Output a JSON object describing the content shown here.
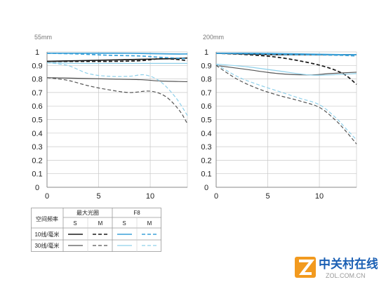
{
  "chart_data": [
    {
      "type": "line",
      "panel_label": "55mm",
      "xlim": [
        0,
        13.6
      ],
      "ylim": [
        0,
        1.0
      ],
      "x_ticks": [
        "0",
        "5",
        "10"
      ],
      "y_ticks": [
        "0",
        "0.1",
        "0.2",
        "0.3",
        "0.4",
        "0.5",
        "0.6",
        "0.7",
        "0.8",
        "0.9",
        "1"
      ],
      "grid": true,
      "series": [
        {
          "group": "max_aperture",
          "freq": "10",
          "dir": "S",
          "points": [
            [
              0,
              0.93
            ],
            [
              3,
              0.935
            ],
            [
              6,
              0.94
            ],
            [
              9,
              0.945
            ],
            [
              12,
              0.95
            ],
            [
              13.6,
              0.955
            ]
          ]
        },
        {
          "group": "max_aperture",
          "freq": "10",
          "dir": "M",
          "points": [
            [
              0,
              0.93
            ],
            [
              3,
              0.93
            ],
            [
              6,
              0.93
            ],
            [
              9,
              0.935
            ],
            [
              11,
              0.95
            ],
            [
              12.5,
              0.945
            ],
            [
              13.6,
              0.935
            ]
          ]
        },
        {
          "group": "max_aperture",
          "freq": "30",
          "dir": "S",
          "points": [
            [
              0,
              0.81
            ],
            [
              3,
              0.805
            ],
            [
              6,
              0.8
            ],
            [
              9,
              0.795
            ],
            [
              11,
              0.785
            ],
            [
              13.6,
              0.78
            ]
          ]
        },
        {
          "group": "max_aperture",
          "freq": "30",
          "dir": "M",
          "points": [
            [
              0,
              0.81
            ],
            [
              2,
              0.79
            ],
            [
              4,
              0.75
            ],
            [
              6,
              0.72
            ],
            [
              8,
              0.7
            ],
            [
              10,
              0.71
            ],
            [
              11.5,
              0.67
            ],
            [
              12.8,
              0.57
            ],
            [
              13.6,
              0.47
            ]
          ]
        },
        {
          "group": "f8",
          "freq": "10",
          "dir": "S",
          "points": [
            [
              0,
              0.99
            ],
            [
              4,
              0.99
            ],
            [
              8,
              0.99
            ],
            [
              12,
              0.985
            ],
            [
              13.6,
              0.985
            ]
          ]
        },
        {
          "group": "f8",
          "freq": "10",
          "dir": "M",
          "points": [
            [
              0,
              0.99
            ],
            [
              3,
              0.985
            ],
            [
              6,
              0.975
            ],
            [
              9,
              0.97
            ],
            [
              11,
              0.96
            ],
            [
              13.6,
              0.95
            ]
          ]
        },
        {
          "group": "f8",
          "freq": "30",
          "dir": "S",
          "points": [
            [
              0,
              0.92
            ],
            [
              3,
              0.915
            ],
            [
              6,
              0.915
            ],
            [
              9,
              0.915
            ],
            [
              12,
              0.915
            ],
            [
              13.6,
              0.915
            ]
          ]
        },
        {
          "group": "f8",
          "freq": "30",
          "dir": "M",
          "points": [
            [
              0,
              0.92
            ],
            [
              2,
              0.9
            ],
            [
              4,
              0.84
            ],
            [
              6,
              0.82
            ],
            [
              8,
              0.82
            ],
            [
              9.5,
              0.83
            ],
            [
              11,
              0.78
            ],
            [
              12.5,
              0.66
            ],
            [
              13.6,
              0.53
            ]
          ]
        }
      ]
    },
    {
      "type": "line",
      "panel_label": "200mm",
      "xlim": [
        0,
        13.6
      ],
      "ylim": [
        0,
        1.0
      ],
      "x_ticks": [
        "0",
        "5",
        "10"
      ],
      "y_ticks": [
        "0",
        "0.1",
        "0.2",
        "0.3",
        "0.4",
        "0.5",
        "0.6",
        "0.7",
        "0.8",
        "0.9",
        "1"
      ],
      "grid": true,
      "series": [
        {
          "group": "max_aperture",
          "freq": "10",
          "dir": "S",
          "points": [
            [
              0,
              0.99
            ],
            [
              3,
              0.985
            ],
            [
              6,
              0.98
            ],
            [
              9,
              0.98
            ],
            [
              12,
              0.98
            ],
            [
              13.6,
              0.98
            ]
          ]
        },
        {
          "group": "max_aperture",
          "freq": "10",
          "dir": "M",
          "points": [
            [
              0,
              0.99
            ],
            [
              3,
              0.98
            ],
            [
              6,
              0.96
            ],
            [
              9,
              0.92
            ],
            [
              11,
              0.88
            ],
            [
              12.5,
              0.83
            ],
            [
              13.6,
              0.76
            ]
          ]
        },
        {
          "group": "max_aperture",
          "freq": "30",
          "dir": "S",
          "points": [
            [
              0,
              0.9
            ],
            [
              3,
              0.87
            ],
            [
              6,
              0.84
            ],
            [
              9,
              0.83
            ],
            [
              11,
              0.84
            ],
            [
              13.6,
              0.85
            ]
          ]
        },
        {
          "group": "max_aperture",
          "freq": "30",
          "dir": "M",
          "points": [
            [
              0,
              0.9
            ],
            [
              2,
              0.8
            ],
            [
              4,
              0.73
            ],
            [
              6,
              0.68
            ],
            [
              8,
              0.64
            ],
            [
              10,
              0.59
            ],
            [
              11.5,
              0.5
            ],
            [
              12.5,
              0.42
            ],
            [
              13.6,
              0.32
            ]
          ]
        },
        {
          "group": "f8",
          "freq": "10",
          "dir": "S",
          "points": [
            [
              0,
              0.99
            ],
            [
              4,
              0.99
            ],
            [
              8,
              0.985
            ],
            [
              12,
              0.98
            ],
            [
              13.6,
              0.98
            ]
          ]
        },
        {
          "group": "f8",
          "freq": "10",
          "dir": "M",
          "points": [
            [
              0,
              0.99
            ],
            [
              4,
              0.985
            ],
            [
              8,
              0.98
            ],
            [
              12,
              0.975
            ],
            [
              13.6,
              0.97
            ]
          ]
        },
        {
          "group": "f8",
          "freq": "30",
          "dir": "S",
          "points": [
            [
              0,
              0.91
            ],
            [
              3,
              0.89
            ],
            [
              6,
              0.86
            ],
            [
              9,
              0.83
            ],
            [
              11,
              0.83
            ],
            [
              13.6,
              0.84
            ]
          ]
        },
        {
          "group": "f8",
          "freq": "30",
          "dir": "M",
          "points": [
            [
              0,
              0.91
            ],
            [
              2,
              0.82
            ],
            [
              4,
              0.76
            ],
            [
              6,
              0.71
            ],
            [
              8,
              0.66
            ],
            [
              10,
              0.61
            ],
            [
              11.5,
              0.52
            ],
            [
              12.5,
              0.44
            ],
            [
              13.6,
              0.35
            ]
          ]
        }
      ]
    }
  ],
  "legend": {
    "header_freq": "空间频率",
    "header_max": "最大光圈",
    "header_f8": "F8",
    "s_label": "S",
    "m_label": "M",
    "row1": "10线/毫米",
    "row2": "30线/毫米"
  },
  "colors": {
    "max_10": "#1a1a1a",
    "max_30": "#555555",
    "f8_10": "#3aa0d8",
    "f8_30": "#8fd0ea",
    "grid": "#c8c8c8",
    "axis": "#888888",
    "wm_orange": "#f29a1f",
    "wm_blue": "#1a5fb4"
  },
  "watermark": {
    "main": "中关村在线",
    "sub": "ZOL.COM.CN"
  }
}
